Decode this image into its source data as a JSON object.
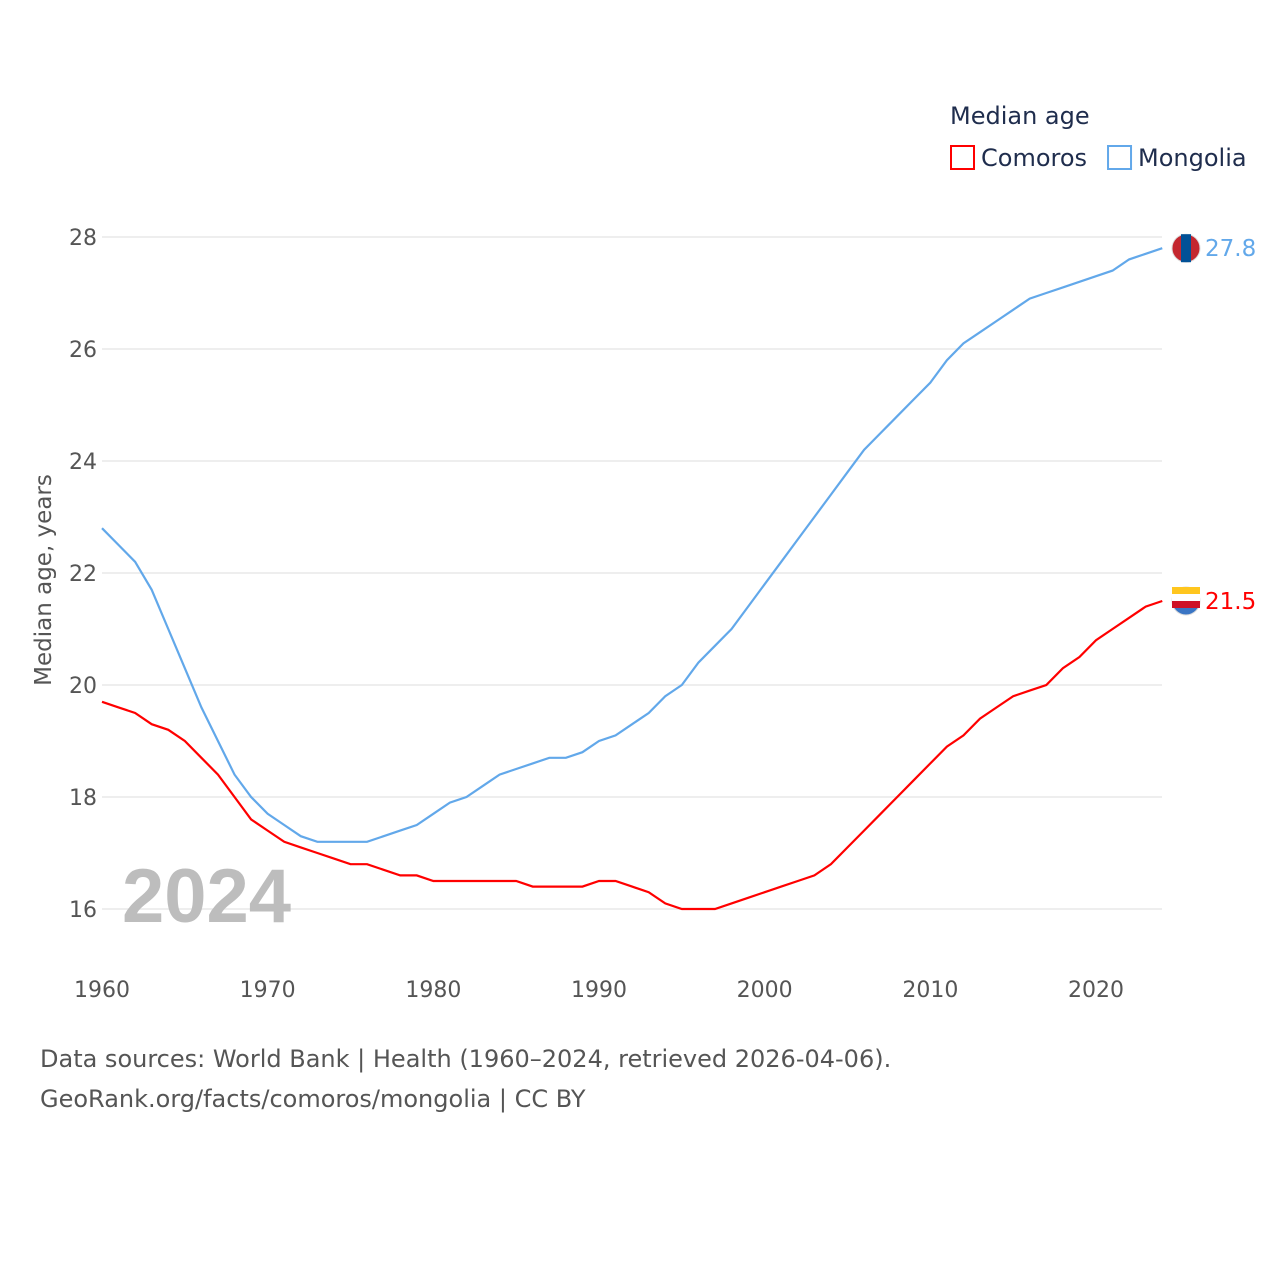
{
  "chart_data": {
    "type": "line",
    "title": "Median age",
    "ylabel": "Median age, years",
    "xlabel": "",
    "xlim": [
      1960,
      2024
    ],
    "ylim": [
      15.2,
      28.5
    ],
    "xticks": [
      "1960",
      "1970",
      "1980",
      "1990",
      "2000",
      "2010",
      "2020"
    ],
    "yticks": [
      "16",
      "18",
      "20",
      "22",
      "24",
      "26",
      "28"
    ],
    "grid": true,
    "legend_position": "top-right",
    "year_label": "2024",
    "x": [
      1960,
      1961,
      1962,
      1963,
      1964,
      1965,
      1966,
      1967,
      1968,
      1969,
      1970,
      1971,
      1972,
      1973,
      1974,
      1975,
      1976,
      1977,
      1978,
      1979,
      1980,
      1981,
      1982,
      1983,
      1984,
      1985,
      1986,
      1987,
      1988,
      1989,
      1990,
      1991,
      1992,
      1993,
      1994,
      1995,
      1996,
      1997,
      1998,
      1999,
      2000,
      2001,
      2002,
      2003,
      2004,
      2005,
      2006,
      2007,
      2008,
      2009,
      2010,
      2011,
      2012,
      2013,
      2014,
      2015,
      2016,
      2017,
      2018,
      2019,
      2020,
      2021,
      2022,
      2023,
      2024
    ],
    "series": [
      {
        "name": "Comoros",
        "color": "#ff0000",
        "end_label": "21.5",
        "values": [
          19.7,
          19.6,
          19.5,
          19.3,
          19.2,
          19.0,
          18.7,
          18.4,
          18.0,
          17.6,
          17.4,
          17.2,
          17.1,
          17.0,
          16.9,
          16.8,
          16.8,
          16.7,
          16.6,
          16.6,
          16.5,
          16.5,
          16.5,
          16.5,
          16.5,
          16.5,
          16.4,
          16.4,
          16.4,
          16.4,
          16.5,
          16.5,
          16.4,
          16.3,
          16.1,
          16.0,
          16.0,
          16.0,
          16.1,
          16.2,
          16.3,
          16.4,
          16.5,
          16.6,
          16.8,
          17.1,
          17.4,
          17.7,
          18.0,
          18.3,
          18.6,
          18.9,
          19.1,
          19.4,
          19.6,
          19.8,
          19.9,
          20.0,
          20.3,
          20.5,
          20.8,
          21.0,
          21.2,
          21.4,
          21.5
        ]
      },
      {
        "name": "Mongolia",
        "color": "#62a8ea",
        "end_label": "27.8",
        "values": [
          22.8,
          22.5,
          22.2,
          21.7,
          21.0,
          20.3,
          19.6,
          19.0,
          18.4,
          18.0,
          17.7,
          17.5,
          17.3,
          17.2,
          17.2,
          17.2,
          17.2,
          17.3,
          17.4,
          17.5,
          17.7,
          17.9,
          18.0,
          18.2,
          18.4,
          18.5,
          18.6,
          18.7,
          18.7,
          18.8,
          19.0,
          19.1,
          19.3,
          19.5,
          19.8,
          20.0,
          20.4,
          20.7,
          21.0,
          21.4,
          21.8,
          22.2,
          22.6,
          23.0,
          23.4,
          23.8,
          24.2,
          24.5,
          24.8,
          25.1,
          25.4,
          25.8,
          26.1,
          26.3,
          26.5,
          26.7,
          26.9,
          27.0,
          27.1,
          27.2,
          27.3,
          27.4,
          27.6,
          27.7,
          27.8
        ]
      }
    ]
  },
  "footer": {
    "line1": "Data sources: World Bank | Health (1960–2024, retrieved 2026-04-06).",
    "line2": "GeoRank.org/facts/comoros/mongolia | CC BY"
  }
}
